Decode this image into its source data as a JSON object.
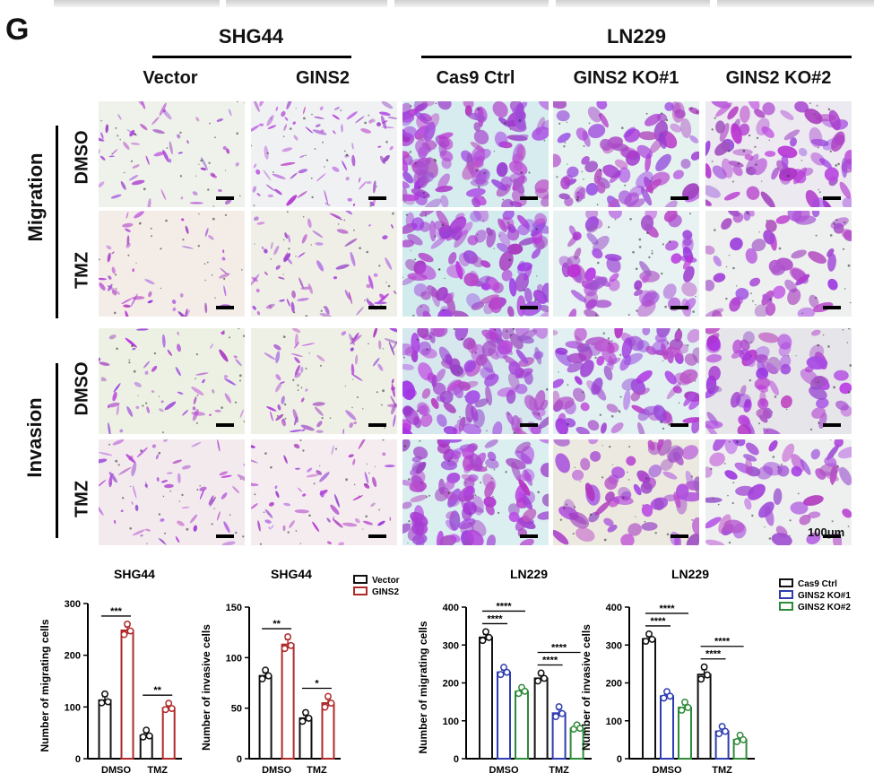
{
  "panel_letter": "G",
  "groups": [
    {
      "id": "shg44",
      "title": "SHG44"
    },
    {
      "id": "ln229",
      "title": "LN229"
    }
  ],
  "columns": [
    "Vector",
    "GINS2",
    "Cas9 Ctrl",
    "GINS2 KO#1",
    "GINS2 KO#2"
  ],
  "row_groups": [
    {
      "label": "Migration",
      "rows": [
        "DMSO",
        "TMZ"
      ]
    },
    {
      "label": "Invasion",
      "rows": [
        "DMSO",
        "TMZ"
      ]
    }
  ],
  "scale_label": "100μm",
  "colors": {
    "stain": "#b25ad6",
    "background": "#e9f1ec",
    "vector": "#111111",
    "gins2": "#b02a2a",
    "cas9": "#111111",
    "ko1": "#2f3db0",
    "ko2": "#2e8b3a"
  },
  "chart_data": [
    {
      "type": "bar",
      "title": "SHG44",
      "ylabel": "Number of migrating cells",
      "categories": [
        "DMSO",
        "TMZ"
      ],
      "ylim": [
        0,
        300
      ],
      "yticks": [
        0,
        100,
        200,
        300
      ],
      "series": [
        {
          "name": "Vector",
          "color": "#111111",
          "values": [
            113,
            45
          ]
        },
        {
          "name": "GINS2",
          "color": "#b02a2a",
          "values": [
            248,
            98
          ]
        }
      ],
      "points": [
        [
          [
            108,
            120,
            110
          ],
          [
            42,
            50,
            44
          ]
        ],
        [
          [
            240,
            255,
            247
          ],
          [
            95,
            102,
            97
          ]
        ]
      ],
      "significance": [
        {
          "category": "DMSO",
          "label": "***"
        },
        {
          "category": "TMZ",
          "label": "**"
        }
      ],
      "legend": false
    },
    {
      "type": "bar",
      "title": "SHG44",
      "ylabel": "Number of invasive cells",
      "categories": [
        "DMSO",
        "TMZ"
      ],
      "ylim": [
        0,
        150
      ],
      "yticks": [
        0,
        50,
        100,
        150
      ],
      "series": [
        {
          "name": "Vector",
          "color": "#111111",
          "values": [
            82,
            40
          ]
        },
        {
          "name": "GINS2",
          "color": "#b02a2a",
          "values": [
            113,
            55
          ]
        }
      ],
      "points": [
        [
          [
            79,
            85,
            82
          ],
          [
            37,
            43,
            40
          ]
        ],
        [
          [
            109,
            118,
            112
          ],
          [
            51,
            59,
            55
          ]
        ]
      ],
      "significance": [
        {
          "category": "DMSO",
          "label": "**"
        },
        {
          "category": "TMZ",
          "label": "*"
        }
      ],
      "legend": true,
      "legend_labels": [
        "Vector",
        "GINS2"
      ]
    },
    {
      "type": "bar",
      "title": "LN229",
      "ylabel": "Number of migrating cells",
      "categories": [
        "DMSO",
        "TMZ"
      ],
      "ylim": [
        0,
        400
      ],
      "yticks": [
        0,
        100,
        200,
        300,
        400
      ],
      "series": [
        {
          "name": "Cas9 Ctrl",
          "color": "#111111",
          "values": [
            320,
            212
          ]
        },
        {
          "name": "GINS2 KO#1",
          "color": "#2f3db0",
          "values": [
            228,
            120
          ]
        },
        {
          "name": "GINS2 KO#2",
          "color": "#2e8b3a",
          "values": [
            177,
            80
          ]
        }
      ],
      "points": [
        [
          [
            312,
            328,
            320
          ],
          [
            205,
            219,
            212
          ]
        ],
        [
          [
            222,
            234,
            228
          ],
          [
            111,
            130,
            119
          ]
        ],
        [
          [
            172,
            181,
            178
          ],
          [
            78,
            82,
            80
          ]
        ]
      ],
      "significance": [
        {
          "category": "DMSO",
          "label": "****",
          "level": 2
        },
        {
          "category": "DMSO",
          "label": "****",
          "level": 1
        },
        {
          "category": "TMZ",
          "label": "****",
          "level": 2
        },
        {
          "category": "TMZ",
          "label": "****",
          "level": 1
        }
      ],
      "legend": false
    },
    {
      "type": "bar",
      "title": "LN229",
      "ylabel": "Number of invasive cells",
      "categories": [
        "DMSO",
        "TMZ"
      ],
      "ylim": [
        0,
        400
      ],
      "yticks": [
        0,
        100,
        200,
        300,
        400
      ],
      "series": [
        {
          "name": "Cas9 Ctrl",
          "color": "#111111",
          "values": [
            316,
            222
          ]
        },
        {
          "name": "GINS2 KO#1",
          "color": "#2f3db0",
          "values": [
            165,
            72
          ]
        },
        {
          "name": "GINS2 KO#2",
          "color": "#2e8b3a",
          "values": [
            135,
            50
          ]
        }
      ],
      "points": [
        [
          [
            310,
            322,
            315
          ],
          [
            210,
            235,
            221
          ]
        ],
        [
          [
            160,
            170,
            165
          ],
          [
            66,
            78,
            72
          ]
        ],
        [
          [
            128,
            142,
            135
          ],
          [
            45,
            55,
            50
          ]
        ]
      ],
      "significance": [
        {
          "category": "DMSO",
          "label": "****",
          "level": 2
        },
        {
          "category": "DMSO",
          "label": "****",
          "level": 1
        },
        {
          "category": "TMZ",
          "label": "****",
          "level": 2
        },
        {
          "category": "TMZ",
          "label": "****",
          "level": 1
        }
      ],
      "legend": true,
      "legend_labels": [
        "Cas9 Ctrl",
        "GINS2 KO#1",
        "GINS2 KO#2"
      ]
    }
  ]
}
